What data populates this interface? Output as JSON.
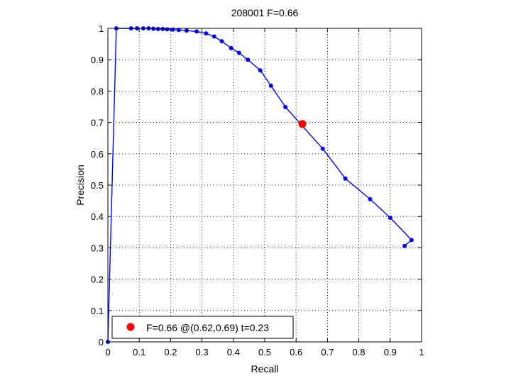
{
  "chart_data": {
    "type": "line",
    "title": "208001 F=0.66",
    "xlabel": "Recall",
    "ylabel": "Precision",
    "xlim": [
      0,
      1
    ],
    "ylim": [
      0,
      1
    ],
    "xticks": [
      "0",
      "0.1",
      "0.2",
      "0.3",
      "0.4",
      "0.5",
      "0.6",
      "0.7",
      "0.8",
      "0.9",
      "1"
    ],
    "yticks": [
      "0",
      "0.1",
      "0.2",
      "0.3",
      "0.4",
      "0.5",
      "0.6",
      "0.7",
      "0.8",
      "0.9",
      "1"
    ],
    "grid": true,
    "legend_position": "bottom-left",
    "series": [
      {
        "color": "#0000ff",
        "points": [
          {
            "x": 0.0,
            "y": 0.0
          },
          {
            "x": 0.027,
            "y": 1.0
          },
          {
            "x": 0.074,
            "y": 1.0
          },
          {
            "x": 0.093,
            "y": 1.0
          },
          {
            "x": 0.113,
            "y": 1.0
          },
          {
            "x": 0.13,
            "y": 1.0
          },
          {
            "x": 0.145,
            "y": 0.999
          },
          {
            "x": 0.16,
            "y": 0.998
          },
          {
            "x": 0.175,
            "y": 0.998
          },
          {
            "x": 0.189,
            "y": 0.997
          },
          {
            "x": 0.207,
            "y": 0.996
          },
          {
            "x": 0.226,
            "y": 0.995
          },
          {
            "x": 0.251,
            "y": 0.993
          },
          {
            "x": 0.283,
            "y": 0.99
          },
          {
            "x": 0.313,
            "y": 0.984
          },
          {
            "x": 0.339,
            "y": 0.974
          },
          {
            "x": 0.363,
            "y": 0.959
          },
          {
            "x": 0.393,
            "y": 0.937
          },
          {
            "x": 0.418,
            "y": 0.922
          },
          {
            "x": 0.446,
            "y": 0.9
          },
          {
            "x": 0.486,
            "y": 0.866
          },
          {
            "x": 0.52,
            "y": 0.817
          },
          {
            "x": 0.566,
            "y": 0.749
          },
          {
            "x": 0.685,
            "y": 0.616
          },
          {
            "x": 0.757,
            "y": 0.521
          },
          {
            "x": 0.836,
            "y": 0.455
          },
          {
            "x": 0.9,
            "y": 0.396
          },
          {
            "x": 0.968,
            "y": 0.325
          },
          {
            "x": 0.946,
            "y": 0.306
          }
        ]
      }
    ],
    "best_point": {
      "x": 0.62,
      "y": 0.695,
      "color": "#ff0000"
    },
    "legend": {
      "label": "F=0.66 @(0.62,0.69) t=0.23",
      "marker_color": "#ff0000"
    }
  }
}
